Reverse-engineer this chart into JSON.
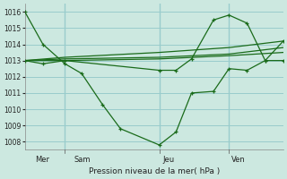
{
  "bg_color": "#cce8e0",
  "grid_color": "#99cccc",
  "line_color": "#1a6b1a",
  "xlabel_text": "Pression niveau de la mer( hPa )",
  "ylim": [
    1007.5,
    1016.5
  ],
  "yticks": [
    1008,
    1009,
    1010,
    1011,
    1012,
    1013,
    1014,
    1015,
    1016
  ],
  "xlim": [
    0,
    1
  ],
  "vlines": [
    0.155,
    0.52,
    0.79
  ],
  "day_labels": [
    [
      "Mer",
      0.04
    ],
    [
      "Sam",
      0.19
    ],
    [
      "Jeu",
      0.535
    ],
    [
      "Ven",
      0.8
    ]
  ],
  "series": [
    {
      "x": [
        0.0,
        0.07,
        0.155,
        0.22,
        0.3,
        0.37,
        0.52,
        0.585,
        0.645,
        0.73,
        0.79,
        0.86,
        0.93,
        1.0
      ],
      "y": [
        1016.0,
        1014.0,
        1012.8,
        1012.2,
        1010.3,
        1008.8,
        1007.8,
        1008.6,
        1011.0,
        1011.1,
        1012.5,
        1012.4,
        1013.0,
        1013.0
      ],
      "marker": "+"
    },
    {
      "x": [
        0.0,
        0.07,
        0.155,
        0.52,
        0.585,
        0.645,
        0.73,
        0.79,
        0.86,
        0.93,
        1.0
      ],
      "y": [
        1013.0,
        1012.8,
        1013.0,
        1012.4,
        1012.4,
        1013.1,
        1015.5,
        1015.8,
        1015.3,
        1013.0,
        1014.2
      ],
      "marker": "+"
    },
    {
      "x": [
        0.0,
        0.155,
        0.52,
        0.79,
        1.0
      ],
      "y": [
        1013.0,
        1013.0,
        1013.1,
        1013.3,
        1013.5
      ],
      "marker": null
    },
    {
      "x": [
        0.0,
        0.155,
        0.52,
        0.79,
        1.0
      ],
      "y": [
        1013.0,
        1013.1,
        1013.2,
        1013.4,
        1013.8
      ],
      "marker": null
    },
    {
      "x": [
        0.0,
        0.155,
        0.52,
        0.79,
        1.0
      ],
      "y": [
        1013.0,
        1013.2,
        1013.5,
        1013.8,
        1014.2
      ],
      "marker": null
    }
  ]
}
